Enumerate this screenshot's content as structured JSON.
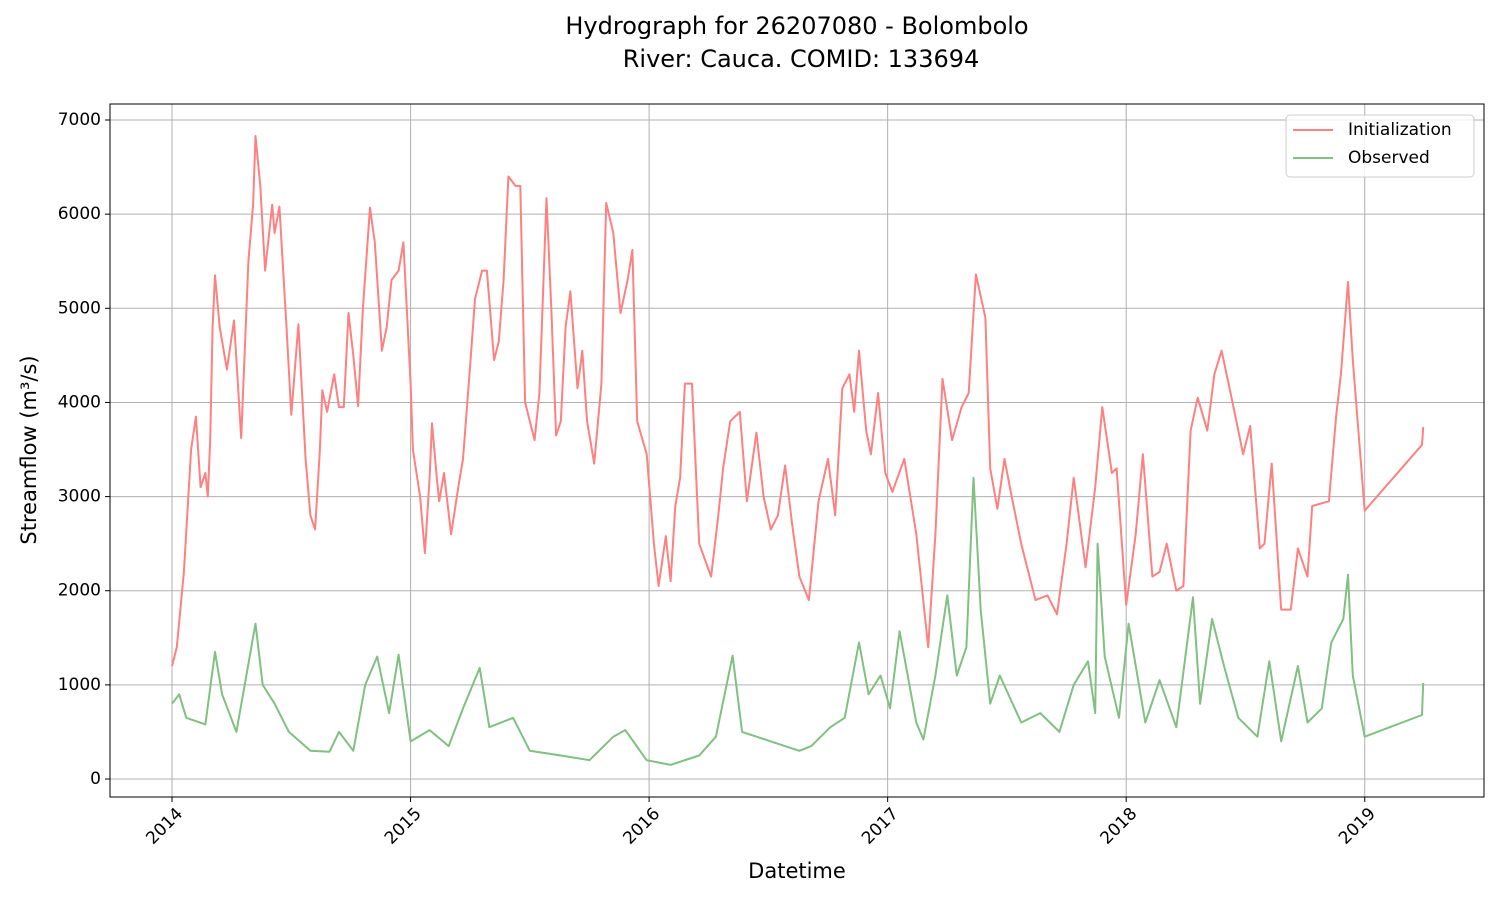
{
  "chart_data": {
    "type": "line",
    "title": "Hydrograph for 26207080 - Bolombolo",
    "subtitle": "River: Cauca. COMID: 133694",
    "x_label": "Datetime",
    "y_label": "Streamflow (m³/s)",
    "xlim": [
      2013.74,
      2019.5
    ],
    "ylim": [
      -191,
      7170
    ],
    "xticks": [
      2014,
      2015,
      2016,
      2017,
      2018,
      2019
    ],
    "yticks": [
      0,
      1000,
      2000,
      3000,
      4000,
      5000,
      6000,
      7000
    ],
    "grid": true,
    "legend": "upper right",
    "series": [
      {
        "name": "Initialization",
        "color": "#ff8080",
        "x": [
          2014.0,
          2014.02,
          2014.05,
          2014.08,
          2014.1,
          2014.12,
          2014.14,
          2014.15,
          2014.16,
          2014.17,
          2014.18,
          2014.2,
          2014.23,
          2014.26,
          2014.29,
          2014.32,
          2014.34,
          2014.35,
          2014.37,
          2014.39,
          2014.42,
          2014.43,
          2014.45,
          2014.48,
          2014.5,
          2014.53,
          2014.56,
          2014.58,
          2014.6,
          2014.62,
          2014.63,
          2014.65,
          2014.68,
          2014.7,
          2014.72,
          2014.74,
          2014.76,
          2014.78,
          2014.8,
          2014.83,
          2014.85,
          2014.88,
          2014.9,
          2014.92,
          2014.95,
          2014.97,
          2015.0,
          2015.01,
          2015.04,
          2015.06,
          2015.08,
          2015.09,
          2015.11,
          2015.12,
          2015.14,
          2015.17,
          2015.2,
          2015.22,
          2015.25,
          2015.27,
          2015.3,
          2015.32,
          2015.35,
          2015.37,
          2015.39,
          2015.41,
          2015.44,
          2015.46,
          2015.48,
          2015.52,
          2015.54,
          2015.57,
          2015.59,
          2015.61,
          2015.63,
          2015.65,
          2015.67,
          2015.7,
          2015.72,
          2015.74,
          2015.77,
          2015.8,
          2015.82,
          2015.85,
          2015.88,
          2015.91,
          2015.93,
          2015.95,
          2015.99,
          2016.02,
          2016.04,
          2016.07,
          2016.09,
          2016.11,
          2016.13,
          2016.15,
          2016.18,
          2016.21,
          2016.26,
          2016.29,
          2016.31,
          2016.34,
          2016.38,
          2016.41,
          2016.45,
          2016.48,
          2016.51,
          2016.54,
          2016.57,
          2016.6,
          2016.63,
          2016.67,
          2016.71,
          2016.75,
          2016.78,
          2016.81,
          2016.84,
          2016.86,
          2016.88,
          2016.91,
          2016.93,
          2016.96,
          2016.99,
          2017.02,
          2017.07,
          2017.12,
          2017.17,
          2017.2,
          2017.23,
          2017.27,
          2017.31,
          2017.34,
          2017.37,
          2017.41,
          2017.43,
          2017.46,
          2017.49,
          2017.52,
          2017.56,
          2017.62,
          2017.67,
          2017.71,
          2017.75,
          2017.78,
          2017.83,
          2017.87,
          2017.9,
          2017.94,
          2017.96,
          2018.0,
          2018.04,
          2018.07,
          2018.11,
          2018.14,
          2018.17,
          2018.21,
          2018.24,
          2018.27,
          2018.3,
          2018.34,
          2018.37,
          2018.4,
          2018.45,
          2018.49,
          2018.52,
          2018.56,
          2018.58,
          2018.61,
          2018.65,
          2018.69,
          2018.72,
          2018.76,
          2018.78,
          2018.85,
          2018.88,
          2018.9,
          2018.93,
          2018.95,
          2019.0,
          2019.24,
          2019.245
        ],
        "values": [
          1200,
          1400,
          2200,
          3500,
          3850,
          3100,
          3250,
          3000,
          3600,
          4800,
          5350,
          4800,
          4350,
          4870,
          3620,
          5500,
          6100,
          6830,
          6300,
          5400,
          6100,
          5800,
          6080,
          4800,
          3870,
          4830,
          3400,
          2800,
          2650,
          3500,
          4130,
          3900,
          4300,
          3950,
          3950,
          4950,
          4500,
          3960,
          5000,
          6070,
          5700,
          4550,
          4800,
          5300,
          5400,
          5700,
          4200,
          3500,
          3000,
          2400,
          3200,
          3780,
          3200,
          2950,
          3250,
          2600,
          3100,
          3400,
          4400,
          5100,
          5400,
          5400,
          4450,
          4650,
          5300,
          6400,
          6300,
          6300,
          4000,
          3600,
          4100,
          6170,
          5000,
          3650,
          3800,
          4800,
          5180,
          4150,
          4550,
          3800,
          3350,
          4200,
          6120,
          5800,
          4950,
          5300,
          5620,
          3800,
          3450,
          2500,
          2050,
          2580,
          2100,
          2900,
          3200,
          4200,
          4200,
          2500,
          2150,
          2800,
          3300,
          3800,
          3900,
          2950,
          3680,
          3000,
          2650,
          2800,
          3330,
          2700,
          2150,
          1900,
          2950,
          3400,
          2800,
          4150,
          4300,
          3900,
          4550,
          3700,
          3450,
          4100,
          3250,
          3050,
          3400,
          2600,
          1400,
          2600,
          4250,
          3600,
          3950,
          4100,
          5360,
          4900,
          3300,
          2870,
          3400,
          3000,
          2500,
          1900,
          1950,
          1750,
          2500,
          3200,
          2250,
          3100,
          3950,
          3250,
          3300,
          1850,
          2600,
          3450,
          2150,
          2200,
          2500,
          2000,
          2050,
          3700,
          4050,
          3700,
          4300,
          4550,
          3950,
          3450,
          3750,
          2450,
          2500,
          3350,
          1800,
          1800,
          2450,
          2150,
          2900,
          2950,
          3850,
          4300,
          5280,
          4450,
          2850,
          3550,
          3740
        ]
      },
      {
        "name": "Observed",
        "color": "#80c080",
        "x": [
          2014.0,
          2014.03,
          2014.06,
          2014.14,
          2014.18,
          2014.21,
          2014.27,
          2014.35,
          2014.38,
          2014.43,
          2014.49,
          2014.58,
          2014.66,
          2014.7,
          2014.76,
          2014.81,
          2014.86,
          2014.91,
          2014.95,
          2015.0,
          2015.08,
          2015.16,
          2015.22,
          2015.29,
          2015.33,
          2015.43,
          2015.5,
          2015.63,
          2015.75,
          2015.85,
          2015.9,
          2015.99,
          2016.09,
          2016.21,
          2016.28,
          2016.35,
          2016.39,
          2016.51,
          2016.63,
          2016.68,
          2016.76,
          2016.82,
          2016.88,
          2016.92,
          2016.97,
          2017.01,
          2017.05,
          2017.12,
          2017.15,
          2017.2,
          2017.25,
          2017.29,
          2017.33,
          2017.36,
          2017.39,
          2017.43,
          2017.47,
          2017.56,
          2017.64,
          2017.72,
          2017.78,
          2017.84,
          2017.87,
          2017.88,
          2017.91,
          2017.97,
          2018.01,
          2018.08,
          2018.14,
          2018.21,
          2018.28,
          2018.31,
          2018.36,
          2018.41,
          2018.47,
          2018.55,
          2018.6,
          2018.65,
          2018.72,
          2018.76,
          2018.82,
          2018.86,
          2018.91,
          2018.93,
          2018.95,
          2019.0,
          2019.24,
          2019.245
        ],
        "values": [
          800,
          900,
          650,
          580,
          1350,
          900,
          500,
          1650,
          1000,
          800,
          500,
          300,
          290,
          500,
          300,
          1000,
          1300,
          700,
          1320,
          400,
          520,
          350,
          750,
          1180,
          550,
          650,
          300,
          250,
          200,
          450,
          520,
          200,
          150,
          250,
          450,
          1310,
          500,
          400,
          300,
          350,
          550,
          650,
          1450,
          900,
          1100,
          750,
          1570,
          600,
          420,
          1100,
          1950,
          1100,
          1400,
          3200,
          1800,
          800,
          1100,
          600,
          700,
          500,
          1000,
          1250,
          700,
          2500,
          1300,
          650,
          1650,
          600,
          1050,
          550,
          1930,
          800,
          1700,
          1200,
          650,
          450,
          1250,
          400,
          1200,
          600,
          750,
          1450,
          1700,
          2170,
          1100,
          450,
          680,
          1020
        ]
      }
    ]
  }
}
